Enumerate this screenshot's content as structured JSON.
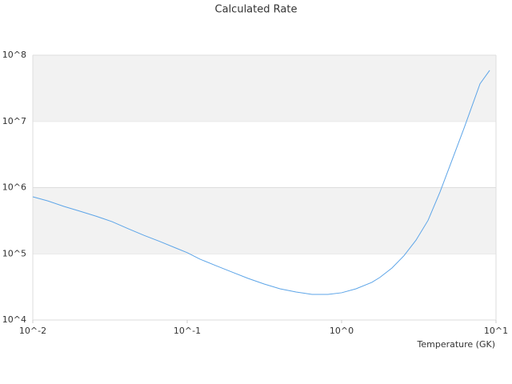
{
  "chart_data": {
    "type": "line",
    "title": "Calculated Rate",
    "x_label": "Temperature (GK)",
    "log_x": true,
    "log_y": true,
    "bands": true,
    "xlim": [
      0.01,
      10
    ],
    "ylim": [
      10000,
      100000000
    ],
    "xticks": [
      {
        "value": 0.01,
        "label": "10^-2"
      },
      {
        "value": 0.1,
        "label": "10^-1"
      },
      {
        "value": 1,
        "label": "10^0"
      },
      {
        "value": 10,
        "label": "10^1"
      }
    ],
    "yticks": [
      {
        "value": 10000,
        "label": "10^4"
      },
      {
        "value": 100000,
        "label": "10^5"
      },
      {
        "value": 1000000,
        "label": "10^6"
      },
      {
        "value": 10000000,
        "label": "10^7"
      },
      {
        "value": 100000000,
        "label": "10^8"
      }
    ],
    "x": [
      0.01,
      0.0125,
      0.0159,
      0.0202,
      0.0257,
      0.0326,
      0.0414,
      0.0525,
      0.0667,
      0.0846,
      0.1,
      0.121,
      0.154,
      0.195,
      0.248,
      0.315,
      0.399,
      0.507,
      0.643,
      0.816,
      1.0,
      1.24,
      1.57,
      1.77,
      2.12,
      2.53,
      3.03,
      3.63,
      4.34,
      5.19,
      6.21,
      7.88,
      9.1
    ],
    "series": [
      {
        "color": "#5da5e8",
        "values": [
          726000,
          630000,
          520000,
          440000,
          370000,
          306000,
          240000,
          190000,
          153000,
          122000,
          104000,
          83000,
          66000,
          53000,
          42500,
          35000,
          29600,
          26500,
          24400,
          24400,
          25800,
          29600,
          37000,
          44000,
          61000,
          93000,
          160000,
          320000,
          860000,
          2600000,
          7900000,
          37000000,
          59000000
        ]
      }
    ]
  }
}
